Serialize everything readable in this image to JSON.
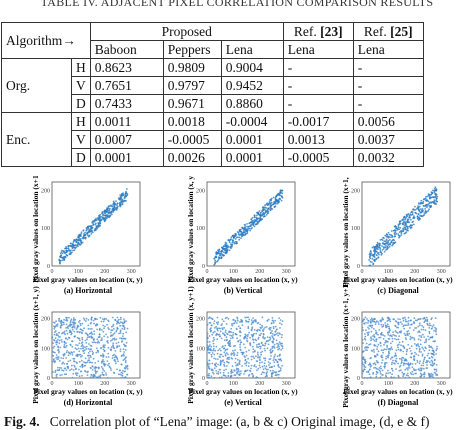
{
  "table": {
    "title": "TABLE IV. ADJACENT PIXEL CORRELATION COMPARISON RESULTS",
    "header": {
      "algorithm": "Algorithm→",
      "proposed": "Proposed",
      "refs": [
        {
          "prefix": "Ref.",
          "cite": "[23]"
        },
        {
          "prefix": "Ref.",
          "cite": "[25]"
        }
      ],
      "images": [
        "Baboon",
        "Peppers",
        "Lena",
        "Lena",
        "Lena"
      ]
    },
    "groups": [
      {
        "label": "Org.",
        "rows": [
          {
            "dir": "H",
            "values": [
              "0.8623",
              "0.9809",
              "0.9004",
              "-",
              "-"
            ]
          },
          {
            "dir": "V",
            "values": [
              "0.7651",
              "0.9797",
              "0.9452",
              "-",
              "-"
            ]
          },
          {
            "dir": "D",
            "values": [
              "0.7433",
              "0.9671",
              "0.8860",
              "-",
              "-"
            ]
          }
        ]
      },
      {
        "label": "Enc.",
        "rows": [
          {
            "dir": "H",
            "values": [
              "0.0011",
              "0.0018",
              "-0.0004",
              "-0.0017",
              "0.0056"
            ]
          },
          {
            "dir": "V",
            "values": [
              "0.0007",
              "-0.0005",
              "0.0001",
              "0.0013",
              "0.0037"
            ]
          },
          {
            "dir": "D",
            "values": [
              "0.0001",
              "0.0026",
              "0.0001",
              "-0.0005",
              "0.0032"
            ]
          }
        ]
      }
    ]
  },
  "figure": {
    "xlabel": "Pixel gray values on location (x, y)",
    "xticks": [
      "0",
      "100",
      "200",
      "300"
    ],
    "yticks": [
      "0",
      "100",
      "200"
    ],
    "panels": [
      {
        "ylabel": "Pixel gray values on location (x+1, y)",
        "caption": "(a) Horizontal"
      },
      {
        "ylabel": "Pixel gray values on location (x, y+1)",
        "caption": "(b) Vertical"
      },
      {
        "ylabel": "Pixel gray values on location (x+1, y+1)",
        "caption": "(c) Diagonal"
      },
      {
        "ylabel": "Pixel gray values on location (x+1, y)",
        "caption": "(d) Horizontal"
      },
      {
        "ylabel": "Pixel gray values on location (x, y+1)",
        "caption": "(e) Vertical"
      },
      {
        "ylabel": "Pixel gray values on location (x+1, y+1)",
        "caption": "(f) Diagonal"
      }
    ],
    "caption": {
      "label": "Fig. 4.",
      "text": "Correlation plot of “Lena” image: (a, b & c) Original image, (d, e & f)"
    }
  }
}
